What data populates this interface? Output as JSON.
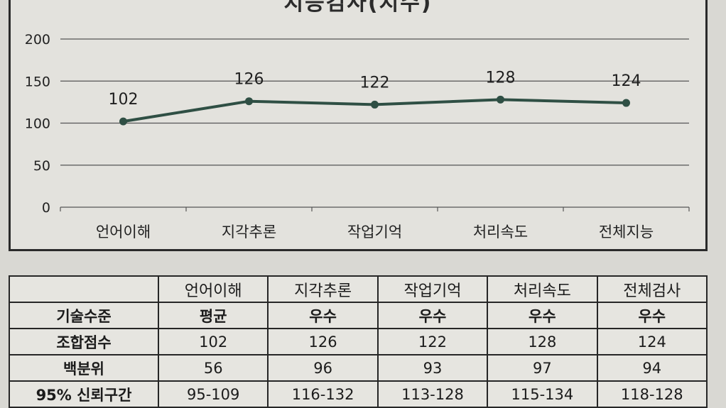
{
  "chart_data": {
    "type": "line",
    "title": "지능검사(지수)",
    "categories": [
      "언어이해",
      "지각추론",
      "작업기억",
      "처리속도",
      "전체지능"
    ],
    "series": [
      {
        "values": [
          102,
          126,
          122,
          128,
          124
        ]
      }
    ],
    "ylim": [
      0,
      200
    ],
    "yticks": [
      0,
      50,
      100,
      150,
      200
    ],
    "grid": true,
    "line_color": "#2f4f44"
  },
  "table": {
    "headers": [
      "",
      "언어이해",
      "지각추론",
      "작업기억",
      "처리속도",
      "전체검사"
    ],
    "rows": [
      {
        "label": "기술수준",
        "cells": [
          "평균",
          "우수",
          "우수",
          "우수",
          "우수"
        ]
      },
      {
        "label": "조합점수",
        "cells": [
          "102",
          "126",
          "122",
          "128",
          "124"
        ]
      },
      {
        "label": "백분위",
        "cells": [
          "56",
          "96",
          "93",
          "97",
          "94"
        ]
      },
      {
        "label": "95% 신뢰구간",
        "cells": [
          "95-109",
          "116-132",
          "113-128",
          "115-134",
          "118-128"
        ]
      }
    ]
  }
}
